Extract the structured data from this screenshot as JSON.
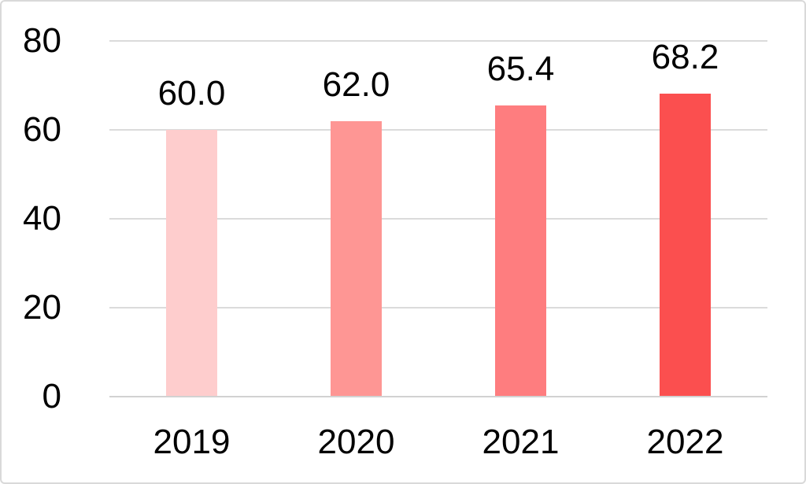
{
  "chart_data": {
    "type": "bar",
    "categories": [
      "2019",
      "2020",
      "2021",
      "2022"
    ],
    "values": [
      60.0,
      62.0,
      65.4,
      68.2
    ],
    "value_labels": [
      "60.0",
      "62.0",
      "65.4",
      "68.2"
    ],
    "bar_colors": [
      "#fecdcd",
      "#fe9694",
      "#fe7d7f",
      "#fb4f4f"
    ],
    "title": "",
    "xlabel": "",
    "ylabel": "",
    "ylim": [
      0,
      80
    ],
    "yticks": [
      0,
      20,
      40,
      60,
      80
    ],
    "ytick_labels": [
      "0",
      "20",
      "40",
      "60",
      "80"
    ],
    "grid": "horizontal",
    "legend": "none"
  },
  "styles": {
    "gridline_color": "#dbdbdb",
    "axis_line_color": "#d2d2d2",
    "frame_border_color": "#d9d9d9",
    "text_color": "#000000",
    "background_color": "#ffffff"
  }
}
